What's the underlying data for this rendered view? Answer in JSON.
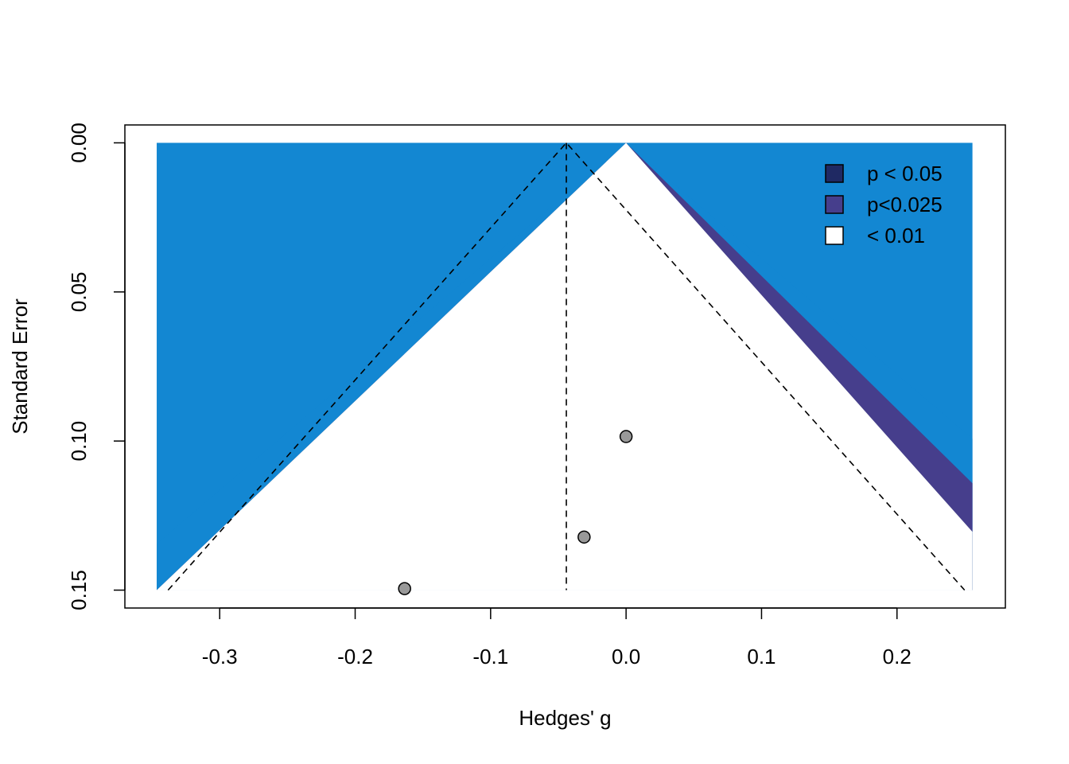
{
  "chart_data": {
    "type": "scatter",
    "subtype": "contour-enhanced funnel plot",
    "title": "",
    "xlabel": "Hedges' g",
    "ylabel": "Standard Error",
    "xlim": [
      -0.37,
      0.28
    ],
    "ylim": [
      0.156,
      -0.006
    ],
    "x_ticks": [
      -0.3,
      -0.2,
      -0.1,
      0.0,
      0.1,
      0.2
    ],
    "x_tick_labels": [
      "-0.3",
      "-0.2",
      "-0.1",
      "0.0",
      "0.1",
      "0.2"
    ],
    "y_ticks": [
      0.0,
      0.05,
      0.1,
      0.15
    ],
    "y_tick_labels": [
      "0.00",
      "0.05",
      "0.10",
      "0.15"
    ],
    "y_reversed": true,
    "grid": false,
    "plot_region": {
      "x": [
        -0.3465,
        0.2557
      ],
      "se": [
        0.0,
        0.15
      ]
    },
    "background_color": "#1387d2",
    "contours": [
      {
        "label": "p < 0.05",
        "z": 1.96,
        "color": "#1f2963"
      },
      {
        "label": "p<0.025",
        "z": 2.24,
        "color": "#463e8c"
      },
      {
        "label": "< 0.01",
        "z": 2.576,
        "color": "#1387d2",
        "legend_fill": "#ffffff"
      }
    ],
    "contour_center": 0.0,
    "summary_estimate": -0.0441,
    "pseudo_ci_z": 1.96,
    "series": [
      {
        "points": [
          {
            "x": 0.0,
            "se": 0.0985
          },
          {
            "x": -0.031,
            "se": 0.1322
          },
          {
            "x": -0.1635,
            "se": 0.1495
          }
        ],
        "color": "#999999"
      }
    ],
    "legend": {
      "position": "top-right",
      "entries": [
        "p < 0.05",
        "p<0.025",
        "< 0.01"
      ]
    }
  }
}
